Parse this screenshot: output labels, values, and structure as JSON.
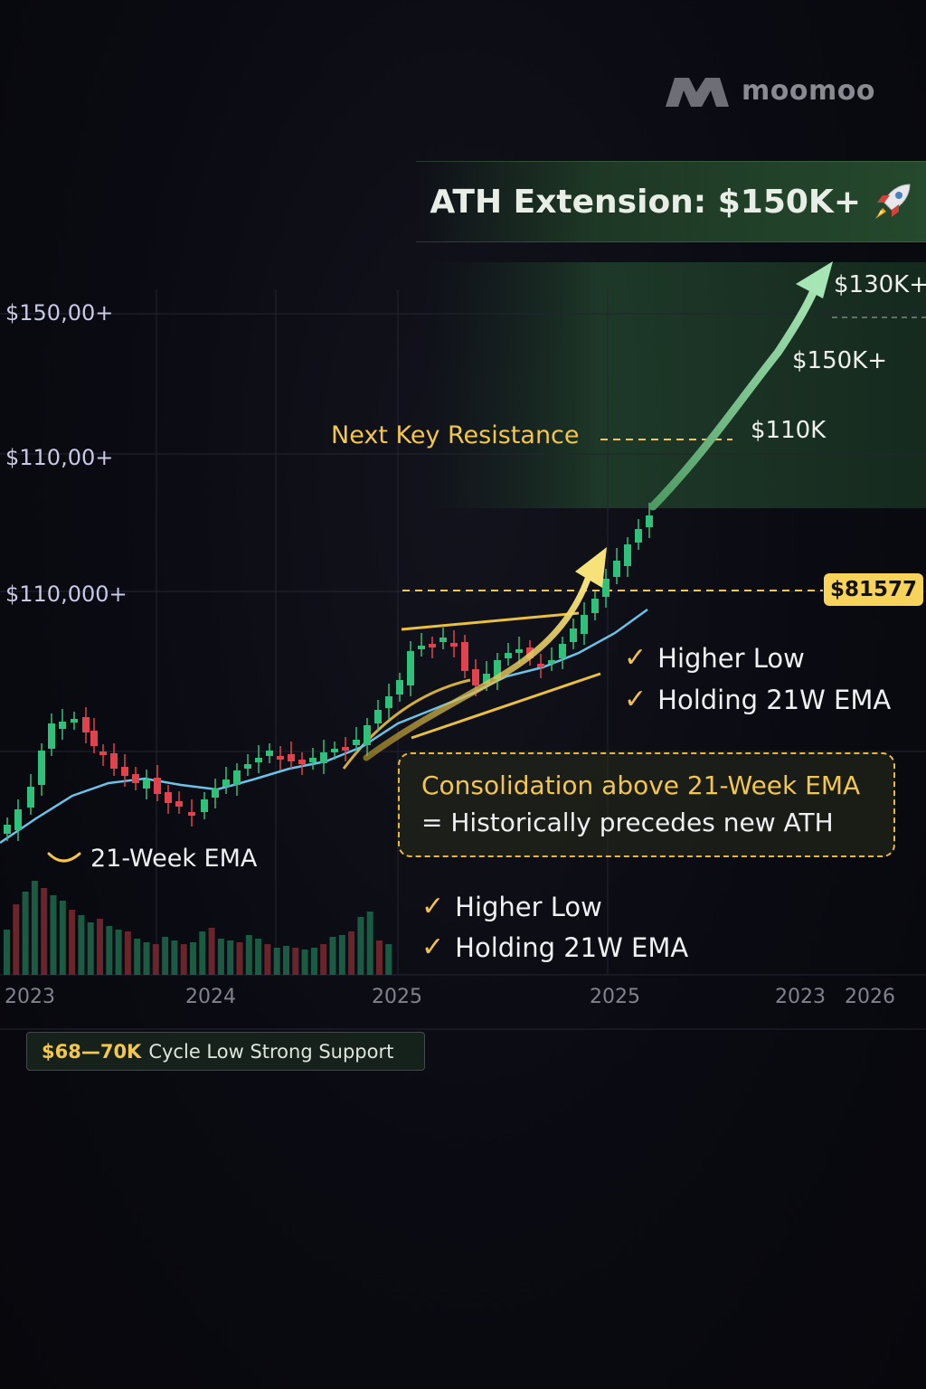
{
  "brand": {
    "name": "moomoo"
  },
  "banner": {
    "title": "ATH Extension: $150K+",
    "icon": "rocket-icon"
  },
  "chart_data": {
    "type": "candlestick",
    "y_labels": [
      "$150,00+",
      "$110,00+",
      "$110,000+"
    ],
    "x_labels": [
      "2023",
      "2024",
      "2025",
      "2025",
      "2023",
      "2026"
    ],
    "ema": {
      "name": "21-Week EMA"
    },
    "current_price": "$81577",
    "resistance": {
      "label": "Next Key Resistance"
    },
    "targets": [
      "$130K+",
      "$150K+",
      "$110K"
    ],
    "grid": true,
    "colors": {
      "up": "#2fc07a",
      "down": "#e0434d",
      "ema": "#6cc3e8",
      "accent": "#f3c64c",
      "target_arrow": "#8ed8a2"
    }
  },
  "notes": {
    "upper": [
      "Higher Low",
      "Holding 21W EMA"
    ],
    "lower": [
      "Higher Low",
      "Holding 21W EMA"
    ]
  },
  "consolidation": {
    "line1": "Consolidation  above 21-Week EMA",
    "line2": "= Historically precedes new ATH"
  },
  "support": {
    "value": "$68—70K",
    "label": "Cycle Low Strong Support"
  }
}
